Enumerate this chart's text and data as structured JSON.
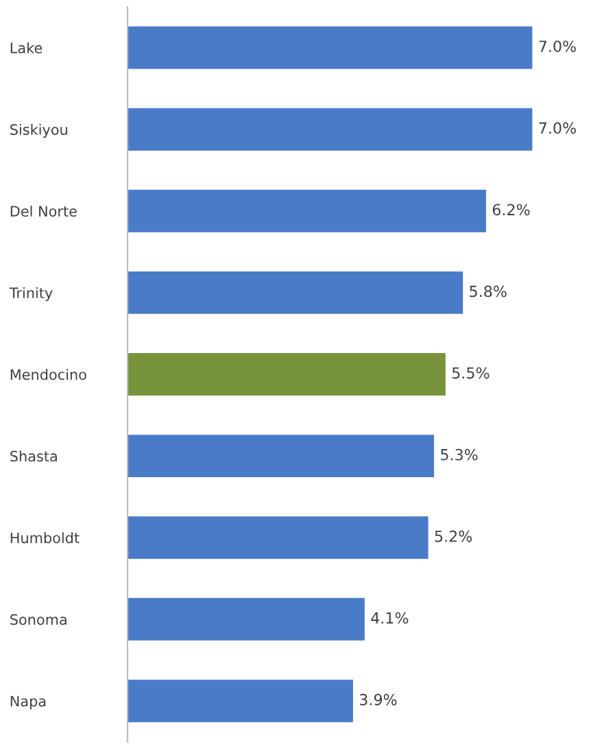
{
  "chart_data": {
    "type": "bar",
    "orientation": "horizontal",
    "categories": [
      "Lake",
      "Siskiyou",
      "Del Norte",
      "Trinity",
      "Mendocino",
      "Shasta",
      "Humboldt",
      "Sonoma",
      "Napa"
    ],
    "values": [
      7.0,
      7.0,
      6.2,
      5.8,
      5.5,
      5.3,
      5.2,
      4.1,
      3.9
    ],
    "colors": [
      "#4a7bc8",
      "#4a7bc8",
      "#4a7bc8",
      "#4a7bc8",
      "#77933c",
      "#4a7bc8",
      "#4a7bc8",
      "#4a7bc8",
      "#4a7bc8"
    ],
    "value_labels": [
      "7.0%",
      "7.0%",
      "6.2%",
      "5.8%",
      "5.5%",
      "5.3%",
      "5.2%",
      "4.1%",
      "3.9%"
    ],
    "grid": false,
    "legend": false
  }
}
